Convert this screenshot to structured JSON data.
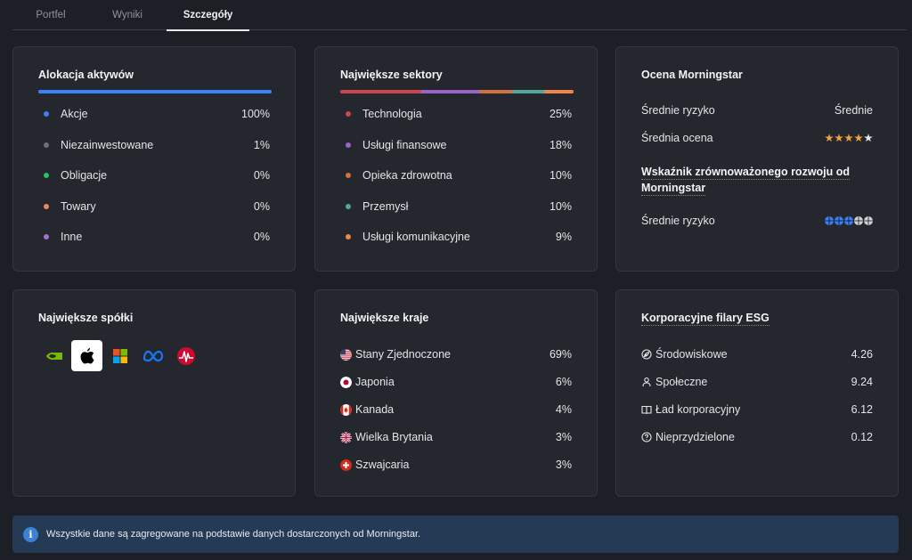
{
  "tabs": [
    {
      "label": "Portfel",
      "active": false
    },
    {
      "label": "Wyniki",
      "active": false
    },
    {
      "label": "Szczegóły",
      "active": true
    }
  ],
  "allocation": {
    "title": "Alokacja aktywów",
    "bar_color": "#3b82f6",
    "items": [
      {
        "label": "Akcje",
        "value": "100%",
        "color": "#3b82f6"
      },
      {
        "label": "Niezainwestowane",
        "value": "1%",
        "color": "#6b7079"
      },
      {
        "label": "Obligacje",
        "value": "0%",
        "color": "#22c55e"
      },
      {
        "label": "Towary",
        "value": "0%",
        "color": "#f0845c"
      },
      {
        "label": "Inne",
        "value": "0%",
        "color": "#a36fd0"
      }
    ]
  },
  "sectors": {
    "title": "Największe sektory",
    "items": [
      {
        "label": "Technologia",
        "value": "25%",
        "share": 25,
        "color": "#d0444f"
      },
      {
        "label": "Usługi finansowe",
        "value": "18%",
        "share": 18,
        "color": "#9b62c9"
      },
      {
        "label": "Opieka zdrowotna",
        "value": "10%",
        "share": 10,
        "color": "#d0723f"
      },
      {
        "label": "Przemysł",
        "value": "10%",
        "share": 10,
        "color": "#4fa89a"
      },
      {
        "label": "Usługi komunikacyjne",
        "value": "9%",
        "share": 9,
        "color": "#f0864e"
      }
    ]
  },
  "morningstar": {
    "title": "Ocena Morningstar",
    "risk_label": "Średnie ryzyko",
    "risk_value": "Średnie",
    "rating_label": "Średnia ocena",
    "rating_stars": 4,
    "rating_max": 5,
    "sustain_title": "Wskaźnik zrównoważonego rozwoju od Morningstar",
    "sustain_risk_label": "Średnie ryzyko",
    "globes": 3,
    "globes_max": 5
  },
  "companies": {
    "title": "Największe spółki",
    "logos": [
      {
        "name": "nvidia-logo"
      },
      {
        "name": "apple-logo",
        "selected": true
      },
      {
        "name": "microsoft-logo"
      },
      {
        "name": "meta-logo"
      },
      {
        "name": "broadcom-logo"
      }
    ]
  },
  "countries": {
    "title": "Największe kraje",
    "items": [
      {
        "label": "Stany Zjednoczone",
        "value": "69%",
        "flag": "us-flag-icon"
      },
      {
        "label": "Japonia",
        "value": "6%",
        "flag": "japan-flag-icon"
      },
      {
        "label": "Kanada",
        "value": "4%",
        "flag": "canada-flag-icon"
      },
      {
        "label": "Wielka Brytania",
        "value": "3%",
        "flag": "uk-flag-icon"
      },
      {
        "label": "Szwajcaria",
        "value": "3%",
        "flag": "switzerland-flag-icon"
      }
    ]
  },
  "esg": {
    "title": "Korporacyjne filary ESG",
    "items": [
      {
        "label": "Środowiskowe",
        "value": "4.26",
        "icon": "leaf-icon"
      },
      {
        "label": "Społeczne",
        "value": "9.24",
        "icon": "person-icon"
      },
      {
        "label": "Ład korporacyjny",
        "value": "6.12",
        "icon": "book-icon"
      },
      {
        "label": "Nieprzydzielone",
        "value": "0.12",
        "icon": "question-icon"
      }
    ]
  },
  "banner": {
    "text": "Wszystkie dane są zagregowane na podstawie danych dostarczonych od Morningstar."
  },
  "colors": {
    "star_filled": "#f0a33c",
    "star_empty": "#e8e8e8",
    "globe_filled": "#3b82f6",
    "globe_empty": "#cfd2d6"
  }
}
